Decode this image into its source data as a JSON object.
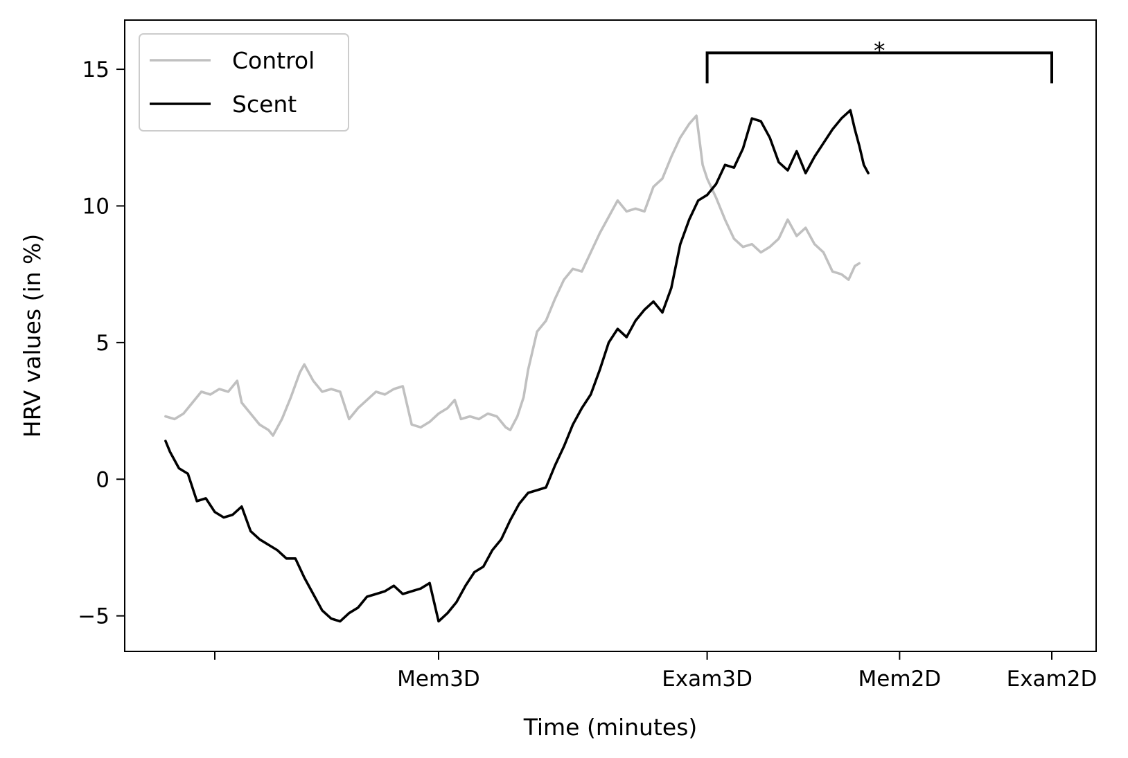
{
  "chart_data": {
    "type": "line",
    "title": "",
    "xlabel": "Time (minutes)",
    "ylabel": "HRV values (in %)",
    "xlim": [
      0,
      100
    ],
    "ylim": [
      -6.3,
      16.8
    ],
    "x_ticks": [
      {
        "x": 10,
        "label": ""
      },
      {
        "x": 35,
        "label": "Mem3D"
      },
      {
        "x": 65,
        "label": "Exam3D"
      },
      {
        "x": 86.5,
        "label": "Mem2D"
      },
      {
        "x": 103.5,
        "label": "Exam2D"
      }
    ],
    "y_ticks": [
      {
        "y": -5,
        "label": "−5"
      },
      {
        "y": 0,
        "label": "0"
      },
      {
        "y": 5,
        "label": "5"
      },
      {
        "y": 10,
        "label": "10"
      },
      {
        "y": 15,
        "label": "15"
      }
    ],
    "grid": false,
    "legend": {
      "placement": "top-left",
      "entries": [
        "Control",
        "Scent"
      ]
    },
    "series": [
      {
        "name": "Control",
        "color": "#c0c0c0",
        "points": [
          [
            4.5,
            2.3
          ],
          [
            5.5,
            2.2
          ],
          [
            6.5,
            2.4
          ],
          [
            7.5,
            2.8
          ],
          [
            8.5,
            3.2
          ],
          [
            9.5,
            3.1
          ],
          [
            10.5,
            3.3
          ],
          [
            11.5,
            3.2
          ],
          [
            12.5,
            3.6
          ],
          [
            13.0,
            2.8
          ],
          [
            14.0,
            2.4
          ],
          [
            15.0,
            2.0
          ],
          [
            16.0,
            1.8
          ],
          [
            16.5,
            1.6
          ],
          [
            17.5,
            2.2
          ],
          [
            18.5,
            3.0
          ],
          [
            19.5,
            3.9
          ],
          [
            20.0,
            4.2
          ],
          [
            21.0,
            3.6
          ],
          [
            22.0,
            3.2
          ],
          [
            23.0,
            3.3
          ],
          [
            24.0,
            3.2
          ],
          [
            25.0,
            2.2
          ],
          [
            26.0,
            2.6
          ],
          [
            27.0,
            2.9
          ],
          [
            28.0,
            3.2
          ],
          [
            29.0,
            3.1
          ],
          [
            30.0,
            3.3
          ],
          [
            31.0,
            3.4
          ],
          [
            32.0,
            2.0
          ],
          [
            33.0,
            1.9
          ],
          [
            34.0,
            2.1
          ],
          [
            35.0,
            2.4
          ],
          [
            36.0,
            2.6
          ],
          [
            36.8,
            2.9
          ],
          [
            37.5,
            2.2
          ],
          [
            38.5,
            2.3
          ],
          [
            39.5,
            2.2
          ],
          [
            40.5,
            2.4
          ],
          [
            41.5,
            2.3
          ],
          [
            42.5,
            1.9
          ],
          [
            43.0,
            1.8
          ],
          [
            43.8,
            2.3
          ],
          [
            44.5,
            3.0
          ],
          [
            45.0,
            4.0
          ],
          [
            46.0,
            5.4
          ],
          [
            47.0,
            5.8
          ],
          [
            48.0,
            6.6
          ],
          [
            49.0,
            7.3
          ],
          [
            50.0,
            7.7
          ],
          [
            51.0,
            7.6
          ],
          [
            52.0,
            8.3
          ],
          [
            53.0,
            9.0
          ],
          [
            54.0,
            9.6
          ],
          [
            55.0,
            10.2
          ],
          [
            56.0,
            9.8
          ],
          [
            57.0,
            9.9
          ],
          [
            58.0,
            9.8
          ],
          [
            59.0,
            10.7
          ],
          [
            60.0,
            11.0
          ],
          [
            61.0,
            11.8
          ],
          [
            62.0,
            12.5
          ],
          [
            63.0,
            13.0
          ],
          [
            63.8,
            13.3
          ],
          [
            64.5,
            11.5
          ],
          [
            65.0,
            11.0
          ],
          [
            66.0,
            10.3
          ],
          [
            67.0,
            9.5
          ],
          [
            68.0,
            8.8
          ],
          [
            69.0,
            8.5
          ],
          [
            70.0,
            8.6
          ],
          [
            71.0,
            8.3
          ],
          [
            72.0,
            8.5
          ],
          [
            73.0,
            8.8
          ],
          [
            74.0,
            9.5
          ],
          [
            75.0,
            8.9
          ],
          [
            76.0,
            9.2
          ],
          [
            77.0,
            8.6
          ],
          [
            78.0,
            8.3
          ],
          [
            79.0,
            7.6
          ],
          [
            80.0,
            7.5
          ],
          [
            80.8,
            7.3
          ],
          [
            81.5,
            7.8
          ],
          [
            82.0,
            7.9
          ]
        ]
      },
      {
        "name": "Scent",
        "color": "#000000",
        "points": [
          [
            4.5,
            1.4
          ],
          [
            5.0,
            1.0
          ],
          [
            6.0,
            0.4
          ],
          [
            7.0,
            0.2
          ],
          [
            8.0,
            -0.8
          ],
          [
            9.0,
            -0.7
          ],
          [
            10.0,
            -1.2
          ],
          [
            11.0,
            -1.4
          ],
          [
            12.0,
            -1.3
          ],
          [
            13.0,
            -1.0
          ],
          [
            14.0,
            -1.9
          ],
          [
            15.0,
            -2.2
          ],
          [
            16.0,
            -2.4
          ],
          [
            17.0,
            -2.6
          ],
          [
            18.0,
            -2.9
          ],
          [
            19.0,
            -2.9
          ],
          [
            20.0,
            -3.6
          ],
          [
            21.0,
            -4.2
          ],
          [
            22.0,
            -4.8
          ],
          [
            23.0,
            -5.1
          ],
          [
            24.0,
            -5.2
          ],
          [
            25.0,
            -4.9
          ],
          [
            26.0,
            -4.7
          ],
          [
            27.0,
            -4.3
          ],
          [
            28.0,
            -4.2
          ],
          [
            29.0,
            -4.1
          ],
          [
            30.0,
            -3.9
          ],
          [
            31.0,
            -4.2
          ],
          [
            32.0,
            -4.1
          ],
          [
            33.0,
            -4.0
          ],
          [
            34.0,
            -3.8
          ],
          [
            35.0,
            -5.2
          ],
          [
            36.0,
            -4.9
          ],
          [
            37.0,
            -4.5
          ],
          [
            38.0,
            -3.9
          ],
          [
            39.0,
            -3.4
          ],
          [
            40.0,
            -3.2
          ],
          [
            41.0,
            -2.6
          ],
          [
            42.0,
            -2.2
          ],
          [
            43.0,
            -1.5
          ],
          [
            44.0,
            -0.9
          ],
          [
            45.0,
            -0.5
          ],
          [
            46.0,
            -0.4
          ],
          [
            47.0,
            -0.3
          ],
          [
            48.0,
            0.5
          ],
          [
            49.0,
            1.2
          ],
          [
            50.0,
            2.0
          ],
          [
            51.0,
            2.6
          ],
          [
            52.0,
            3.1
          ],
          [
            53.0,
            4.0
          ],
          [
            54.0,
            5.0
          ],
          [
            55.0,
            5.5
          ],
          [
            56.0,
            5.2
          ],
          [
            57.0,
            5.8
          ],
          [
            58.0,
            6.2
          ],
          [
            59.0,
            6.5
          ],
          [
            60.0,
            6.1
          ],
          [
            61.0,
            7.0
          ],
          [
            62.0,
            8.6
          ],
          [
            63.0,
            9.5
          ],
          [
            64.0,
            10.2
          ],
          [
            65.0,
            10.4
          ],
          [
            66.0,
            10.8
          ],
          [
            67.0,
            11.5
          ],
          [
            68.0,
            11.4
          ],
          [
            69.0,
            12.1
          ],
          [
            70.0,
            13.2
          ],
          [
            71.0,
            13.1
          ],
          [
            72.0,
            12.5
          ],
          [
            73.0,
            11.6
          ],
          [
            74.0,
            11.3
          ],
          [
            75.0,
            12.0
          ],
          [
            76.0,
            11.2
          ],
          [
            77.0,
            11.8
          ],
          [
            78.0,
            12.3
          ],
          [
            79.0,
            12.8
          ],
          [
            80.0,
            13.2
          ],
          [
            81.0,
            13.5
          ],
          [
            81.5,
            12.8
          ],
          [
            82.0,
            12.2
          ],
          [
            82.5,
            11.5
          ],
          [
            83.0,
            11.2
          ]
        ]
      }
    ],
    "annotations": [
      {
        "type": "significance-bracket",
        "x_start": 65,
        "x_end": 103.5,
        "y": 15.6,
        "label": "*"
      }
    ]
  }
}
